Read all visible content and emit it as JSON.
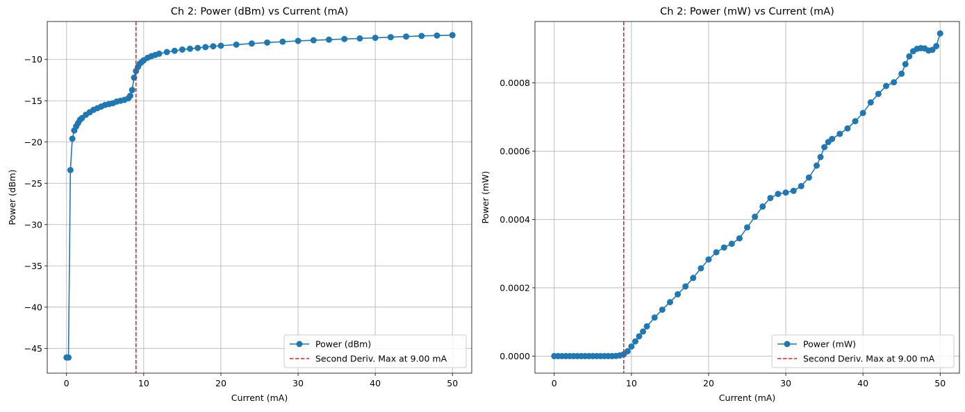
{
  "colors": {
    "series": "#1f77b4",
    "vline": "#d62728",
    "grid": "#b0b0b0",
    "legend_border": "#cccccc"
  },
  "chart_data": [
    {
      "type": "line",
      "title": "Ch 2: Power (dBm) vs Current (mA)",
      "xlabel": "Current (mA)",
      "ylabel": "Power (dBm)",
      "xlim": [
        -2.5,
        52.5
      ],
      "ylim": [
        -48,
        -5.4
      ],
      "xticks": [
        0,
        10,
        20,
        30,
        40,
        50
      ],
      "xtick_labels": [
        "0",
        "10",
        "20",
        "30",
        "40",
        "50"
      ],
      "yticks": [
        -45,
        -40,
        -35,
        -30,
        -25,
        -20,
        -15,
        -10
      ],
      "ytick_labels": [
        "−45",
        "−40",
        "−35",
        "−30",
        "−25",
        "−20",
        "−15",
        "−10"
      ],
      "grid": true,
      "legend_position": "lower-right",
      "vline": {
        "x": 9.0,
        "label": "Second Deriv. Max at 9.00 mA"
      },
      "series": [
        {
          "name": "Power (dBm)",
          "marker": "circle",
          "x": [
            0,
            0.25,
            0.5,
            0.75,
            1,
            1.25,
            1.5,
            1.75,
            2,
            2.5,
            3,
            3.5,
            4,
            4.5,
            5,
            5.5,
            6,
            6.5,
            7,
            7.5,
            8,
            8.25,
            8.5,
            8.75,
            9,
            9.25,
            9.5,
            9.75,
            10,
            10.5,
            11,
            11.5,
            12,
            13,
            14,
            15,
            16,
            17,
            18,
            19,
            20,
            22,
            24,
            26,
            28,
            30,
            32,
            34,
            36,
            38,
            40,
            42,
            44,
            46,
            48,
            50
          ],
          "y": [
            -46.1,
            -46.1,
            -23.4,
            -19.6,
            -18.6,
            -18.1,
            -17.7,
            -17.3,
            -17.1,
            -16.7,
            -16.4,
            -16.1,
            -15.9,
            -15.7,
            -15.5,
            -15.4,
            -15.3,
            -15.1,
            -15.0,
            -14.9,
            -14.7,
            -14.4,
            -13.7,
            -12.2,
            -11.4,
            -10.9,
            -10.5,
            -10.3,
            -10.1,
            -9.8,
            -9.6,
            -9.45,
            -9.3,
            -9.1,
            -8.95,
            -8.8,
            -8.7,
            -8.6,
            -8.5,
            -8.4,
            -8.33,
            -8.2,
            -8.07,
            -7.95,
            -7.85,
            -7.75,
            -7.67,
            -7.6,
            -7.52,
            -7.45,
            -7.38,
            -7.3,
            -7.22,
            -7.15,
            -7.1,
            -7.05
          ]
        }
      ]
    },
    {
      "type": "line",
      "title": "Ch 2: Power (mW) vs Current (mA)",
      "xlabel": "Current (mA)",
      "ylabel": "Power (mW)",
      "xlim": [
        -2.5,
        52.5
      ],
      "ylim": [
        -5e-05,
        0.00098
      ],
      "xticks": [
        0,
        10,
        20,
        30,
        40,
        50
      ],
      "xtick_labels": [
        "0",
        "10",
        "20",
        "30",
        "40",
        "50"
      ],
      "yticks": [
        0,
        0.0002,
        0.0004,
        0.0006,
        0.0008
      ],
      "ytick_labels": [
        "0.0000",
        "0.0002",
        "0.0004",
        "0.0006",
        "0.0008"
      ],
      "grid": true,
      "legend_position": "lower-right",
      "vline": {
        "x": 9.0,
        "label": "Second Deriv. Max at 9.00 mA"
      },
      "series": [
        {
          "name": "Power (mW)",
          "marker": "circle",
          "x": [
            0,
            0.5,
            1,
            1.5,
            2,
            2.5,
            3,
            3.5,
            4,
            4.5,
            5,
            5.5,
            6,
            6.5,
            7,
            7.5,
            8,
            8.5,
            9,
            9.5,
            10,
            10.5,
            11,
            11.5,
            12,
            13,
            14,
            15,
            16,
            17,
            18,
            19,
            20,
            21,
            22,
            23,
            24,
            25,
            26,
            27,
            28,
            29,
            30,
            31,
            32,
            33,
            34,
            34.5,
            35,
            35.5,
            36,
            37,
            38,
            39,
            40,
            41,
            42,
            43,
            44,
            45,
            45.5,
            46,
            46.5,
            47,
            47.5,
            48,
            48.5,
            49,
            49.5,
            50
          ],
          "y": [
            0,
            0,
            0,
            0,
            0,
            0,
            0,
            0,
            0,
            0,
            0,
            0,
            0,
            0,
            0,
            0,
            5e-07,
            2e-06,
            5e-06,
            1.4e-05,
            2.8e-05,
            4.3e-05,
            5.8e-05,
            7.2e-05,
            8.7e-05,
            0.000113,
            0.000136,
            0.000158,
            0.000181,
            0.000204,
            0.000229,
            0.000257,
            0.000283,
            0.000304,
            0.000318,
            0.000329,
            0.000345,
            0.000377,
            0.000408,
            0.000438,
            0.000463,
            0.000475,
            0.000479,
            0.000484,
            0.000498,
            0.000523,
            0.000558,
            0.000583,
            0.000612,
            0.000627,
            0.000636,
            0.000651,
            0.000667,
            0.000688,
            0.000712,
            0.000743,
            0.000768,
            0.000791,
            0.000802,
            0.000827,
            0.000855,
            0.000878,
            0.000893,
            0.0009,
            0.000902,
            0.000901,
            0.000895,
            0.000897,
            0.000908,
            0.000945
          ]
        }
      ]
    }
  ]
}
